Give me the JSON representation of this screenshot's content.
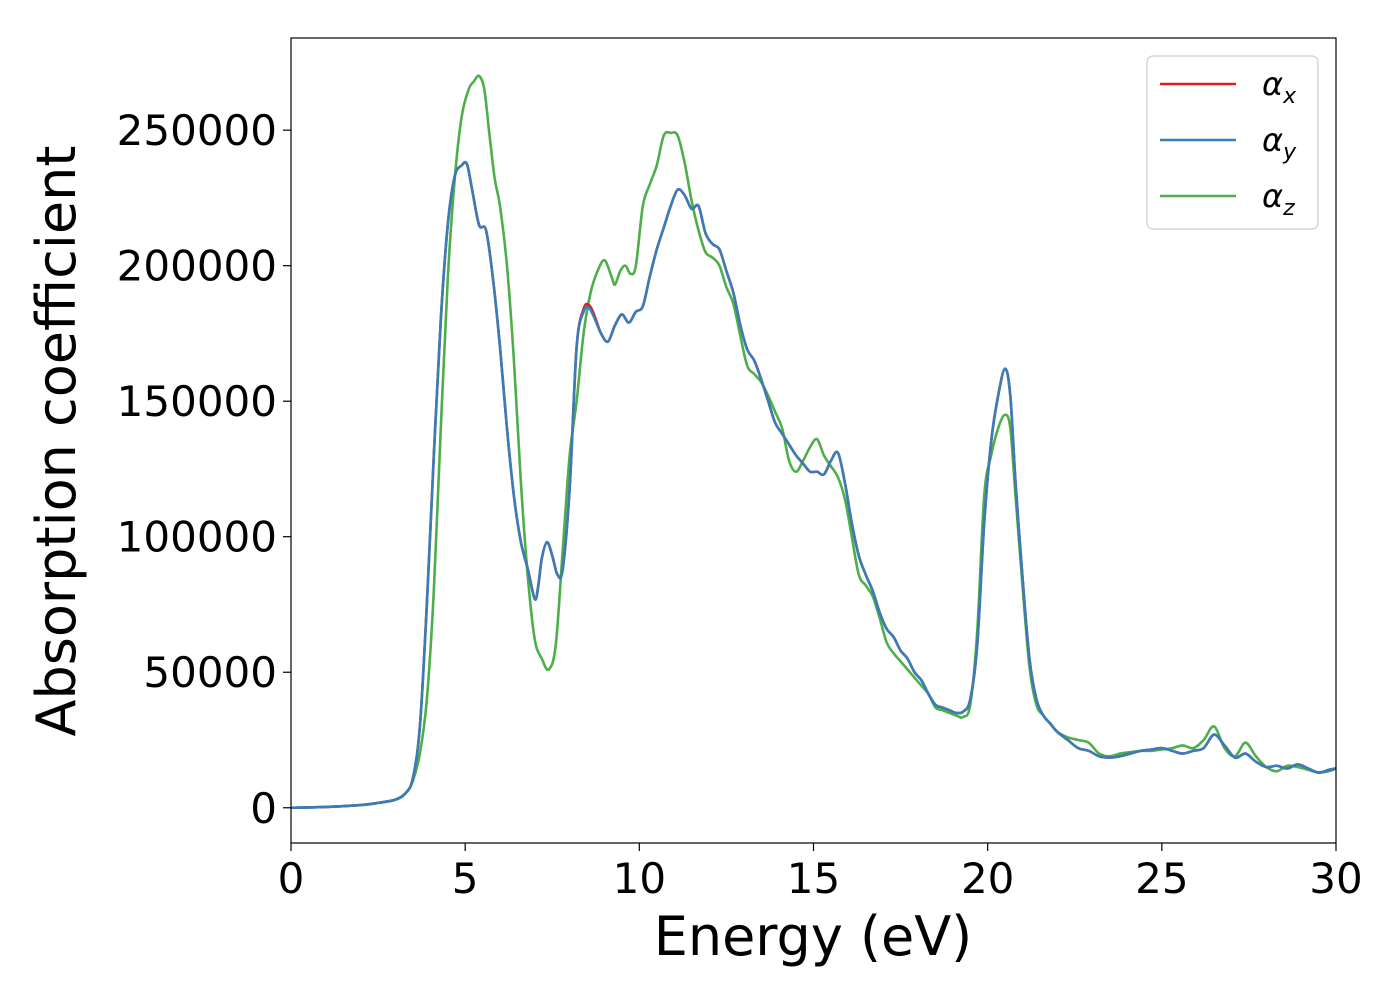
{
  "chart_data": {
    "type": "line",
    "title": "",
    "xlabel": "Energy (eV)",
    "ylabel": "Absorption coefficient",
    "xlim": [
      0,
      30
    ],
    "ylim": [
      -13000,
      284000
    ],
    "xticks": [
      0,
      5,
      10,
      15,
      20,
      25,
      30
    ],
    "yticks": [
      0,
      50000,
      100000,
      150000,
      200000,
      250000
    ],
    "grid": false,
    "legend_position": "top-right",
    "series": [
      {
        "name": "α_x",
        "color": "#e41a1c",
        "x": [
          0,
          1,
          2,
          2.5,
          3,
          3.3,
          3.5,
          3.7,
          3.9,
          4.1,
          4.3,
          4.5,
          4.7,
          4.9,
          5.05,
          5.2,
          5.4,
          5.6,
          5.8,
          6.0,
          6.2,
          6.4,
          6.6,
          6.8,
          7.0,
          7.1,
          7.2,
          7.35,
          7.5,
          7.65,
          7.8,
          8.0,
          8.2,
          8.4,
          8.55,
          8.7,
          8.9,
          9.1,
          9.3,
          9.5,
          9.7,
          9.9,
          10.1,
          10.3,
          10.5,
          10.7,
          10.9,
          11.1,
          11.3,
          11.5,
          11.7,
          11.9,
          12.1,
          12.3,
          12.5,
          12.7,
          12.9,
          13.1,
          13.3,
          13.5,
          13.7,
          13.9,
          14.1,
          14.3,
          14.5,
          14.7,
          14.9,
          15.1,
          15.3,
          15.5,
          15.7,
          15.9,
          16.1,
          16.3,
          16.5,
          16.7,
          16.9,
          17.1,
          17.3,
          17.5,
          17.7,
          17.9,
          18.1,
          18.3,
          18.5,
          18.7,
          18.9,
          19.1,
          19.3,
          19.5,
          19.7,
          19.9,
          20.1,
          20.3,
          20.5,
          20.65,
          20.8,
          21.0,
          21.2,
          21.4,
          21.6,
          21.8,
          22.0,
          22.3,
          22.6,
          22.9,
          23.2,
          23.5,
          23.8,
          24.1,
          24.4,
          24.7,
          25.0,
          25.3,
          25.6,
          25.9,
          26.2,
          26.5,
          26.8,
          27.1,
          27.4,
          27.7,
          28.0,
          28.3,
          28.6,
          28.9,
          29.2,
          29.5,
          29.8,
          30
        ],
        "values": [
          0,
          300,
          1000,
          1800,
          3000,
          5500,
          11000,
          30000,
          75000,
          130000,
          180000,
          215000,
          233000,
          237000,
          237500,
          228000,
          215000,
          213000,
          195000,
          170000,
          140000,
          115000,
          98000,
          88000,
          77000,
          82000,
          92000,
          98000,
          93000,
          86000,
          88000,
          118000,
          170000,
          184000,
          185500,
          182000,
          175000,
          172000,
          178000,
          182000,
          179000,
          183000,
          185000,
          196000,
          206000,
          214000,
          222000,
          228000,
          226000,
          221000,
          222000,
          212000,
          208000,
          206000,
          198000,
          190000,
          178000,
          169000,
          165000,
          158000,
          150000,
          142000,
          138000,
          134000,
          130000,
          127000,
          124000,
          124000,
          123000,
          128000,
          131000,
          120000,
          105000,
          93000,
          86000,
          80000,
          72000,
          66000,
          63000,
          58000,
          55000,
          50000,
          47000,
          42000,
          38000,
          37000,
          36000,
          35000,
          35500,
          40000,
          60000,
          105000,
          135000,
          152000,
          162000,
          152000,
          120000,
          85000,
          55000,
          40000,
          34000,
          31000,
          28000,
          25000,
          22000,
          21000,
          19000,
          18500,
          19000,
          20000,
          21000,
          21500,
          22000,
          21000,
          20000,
          21000,
          22000,
          27000,
          23000,
          18500,
          20000,
          17000,
          15000,
          15500,
          14500,
          16000,
          14500,
          13000,
          14000,
          14500
        ]
      },
      {
        "name": "α_y",
        "color": "#377eb8",
        "x": [
          0,
          1,
          2,
          2.5,
          3,
          3.3,
          3.5,
          3.7,
          3.9,
          4.1,
          4.3,
          4.5,
          4.7,
          4.9,
          5.05,
          5.2,
          5.4,
          5.6,
          5.8,
          6.0,
          6.2,
          6.4,
          6.6,
          6.8,
          7.0,
          7.1,
          7.2,
          7.35,
          7.5,
          7.65,
          7.8,
          8.0,
          8.2,
          8.4,
          8.55,
          8.7,
          8.9,
          9.1,
          9.3,
          9.5,
          9.7,
          9.9,
          10.1,
          10.3,
          10.5,
          10.7,
          10.9,
          11.1,
          11.3,
          11.5,
          11.7,
          11.9,
          12.1,
          12.3,
          12.5,
          12.7,
          12.9,
          13.1,
          13.3,
          13.5,
          13.7,
          13.9,
          14.1,
          14.3,
          14.5,
          14.7,
          14.9,
          15.1,
          15.3,
          15.5,
          15.7,
          15.9,
          16.1,
          16.3,
          16.5,
          16.7,
          16.9,
          17.1,
          17.3,
          17.5,
          17.7,
          17.9,
          18.1,
          18.3,
          18.5,
          18.7,
          18.9,
          19.1,
          19.3,
          19.5,
          19.7,
          19.9,
          20.1,
          20.3,
          20.5,
          20.65,
          20.8,
          21.0,
          21.2,
          21.4,
          21.6,
          21.8,
          22.0,
          22.3,
          22.6,
          22.9,
          23.2,
          23.5,
          23.8,
          24.1,
          24.4,
          24.7,
          25.0,
          25.3,
          25.6,
          25.9,
          26.2,
          26.5,
          26.8,
          27.1,
          27.4,
          27.7,
          28.0,
          28.3,
          28.6,
          28.9,
          29.2,
          29.5,
          29.8,
          30
        ],
        "values": [
          0,
          300,
          1000,
          1800,
          3000,
          5500,
          11000,
          30000,
          75000,
          130000,
          180000,
          215000,
          233000,
          237000,
          237500,
          228000,
          215000,
          213000,
          195000,
          170000,
          140000,
          115000,
          98000,
          88000,
          77000,
          82000,
          92000,
          98000,
          93000,
          86000,
          88000,
          118000,
          170000,
          183000,
          184500,
          181000,
          175000,
          172000,
          178000,
          182000,
          179000,
          183000,
          185000,
          196000,
          206000,
          214000,
          222000,
          228000,
          226000,
          221000,
          222000,
          212000,
          208000,
          206000,
          198000,
          190000,
          178000,
          169000,
          165000,
          158000,
          150000,
          142000,
          138000,
          134000,
          130000,
          127000,
          124000,
          124000,
          123000,
          128000,
          131000,
          120000,
          105000,
          93000,
          86000,
          80000,
          72000,
          66000,
          63000,
          58000,
          55000,
          50000,
          47000,
          42000,
          38000,
          37000,
          36000,
          35000,
          35500,
          40000,
          60000,
          105000,
          135000,
          152000,
          162000,
          152000,
          120000,
          85000,
          55000,
          40000,
          34000,
          31000,
          28000,
          25000,
          22000,
          21000,
          19000,
          18500,
          19000,
          20000,
          21000,
          21500,
          22000,
          21000,
          20000,
          21000,
          22000,
          27000,
          23000,
          18500,
          20000,
          17000,
          15000,
          15500,
          14500,
          16000,
          14500,
          13000,
          14000,
          14500
        ]
      },
      {
        "name": "α_z",
        "color": "#4daf4a",
        "x": [
          0,
          1,
          2,
          2.5,
          3,
          3.3,
          3.5,
          3.7,
          3.9,
          4.1,
          4.3,
          4.5,
          4.7,
          4.9,
          5.1,
          5.25,
          5.4,
          5.55,
          5.7,
          5.85,
          6.0,
          6.2,
          6.4,
          6.6,
          6.8,
          7.0,
          7.2,
          7.4,
          7.6,
          7.8,
          8.0,
          8.2,
          8.4,
          8.6,
          8.8,
          9.0,
          9.2,
          9.3,
          9.45,
          9.6,
          9.75,
          9.9,
          10.1,
          10.3,
          10.5,
          10.7,
          10.9,
          11.1,
          11.3,
          11.5,
          11.7,
          11.9,
          12.1,
          12.3,
          12.5,
          12.7,
          12.9,
          13.1,
          13.3,
          13.5,
          13.7,
          13.9,
          14.1,
          14.3,
          14.5,
          14.7,
          14.9,
          15.1,
          15.3,
          15.5,
          15.7,
          15.9,
          16.1,
          16.3,
          16.5,
          16.7,
          16.9,
          17.1,
          17.3,
          17.5,
          17.7,
          17.9,
          18.1,
          18.3,
          18.5,
          18.7,
          18.9,
          19.1,
          19.3,
          19.5,
          19.7,
          19.9,
          20.1,
          20.3,
          20.5,
          20.65,
          20.8,
          21.0,
          21.2,
          21.4,
          21.6,
          21.8,
          22.0,
          22.3,
          22.6,
          22.9,
          23.2,
          23.5,
          23.8,
          24.1,
          24.4,
          24.7,
          25.0,
          25.3,
          25.6,
          25.9,
          26.2,
          26.5,
          26.8,
          27.1,
          27.4,
          27.7,
          28.0,
          28.3,
          28.6,
          28.9,
          29.2,
          29.5,
          29.8,
          30
        ],
        "values": [
          0,
          300,
          1000,
          1800,
          3000,
          5500,
          10000,
          20000,
          40000,
          80000,
          140000,
          195000,
          232000,
          255000,
          265000,
          268000,
          270000,
          265000,
          248000,
          232000,
          222000,
          200000,
          165000,
          120000,
          85000,
          62000,
          55000,
          51000,
          60000,
          95000,
          130000,
          150000,
          175000,
          190000,
          198000,
          202000,
          196000,
          193000,
          198000,
          200000,
          197000,
          200000,
          222000,
          230000,
          237000,
          248000,
          249000,
          248000,
          238000,
          224000,
          213000,
          205000,
          203000,
          200000,
          192000,
          186000,
          174000,
          163000,
          160000,
          157000,
          152000,
          146000,
          140000,
          128000,
          124000,
          128000,
          133000,
          136000,
          130000,
          126000,
          122000,
          114000,
          100000,
          86000,
          82000,
          78000,
          70000,
          61000,
          57000,
          54000,
          51000,
          48000,
          45000,
          42000,
          37000,
          36000,
          35000,
          34000,
          33500,
          38000,
          65000,
          115000,
          130000,
          140000,
          145000,
          140000,
          115000,
          82000,
          52000,
          38000,
          34000,
          31000,
          28000,
          26000,
          25000,
          24000,
          20000,
          19000,
          20000,
          20500,
          21000,
          21000,
          21500,
          22000,
          23000,
          22000,
          25000,
          30000,
          22000,
          19000,
          24000,
          19000,
          15000,
          13500,
          15500,
          15000,
          14000,
          13000,
          13500,
          14500
        ]
      }
    ]
  }
}
